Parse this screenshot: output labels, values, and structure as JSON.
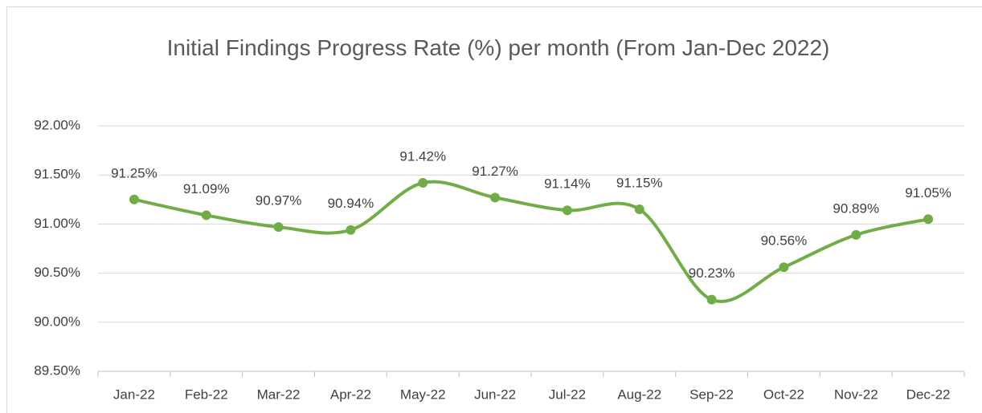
{
  "chart_data": {
    "type": "line",
    "title": "Initial Findings Progress Rate (%) per month (From Jan-Dec 2022)",
    "categories": [
      "Jan-22",
      "Feb-22",
      "Mar-22",
      "Apr-22",
      "May-22",
      "Jun-22",
      "Jul-22",
      "Aug-22",
      "Sep-22",
      "Oct-22",
      "Nov-22",
      "Dec-22"
    ],
    "values": [
      91.25,
      91.09,
      90.97,
      90.94,
      91.42,
      91.27,
      91.14,
      91.15,
      90.23,
      90.56,
      90.89,
      91.05
    ],
    "value_labels": [
      "91.25%",
      "91.09%",
      "90.97%",
      "90.94%",
      "91.42%",
      "91.27%",
      "91.14%",
      "91.15%",
      "90.23%",
      "90.56%",
      "90.89%",
      "91.05%"
    ],
    "color": "#70ad47",
    "ylim": [
      89.5,
      92
    ],
    "yticks": [
      {
        "value": 89.5,
        "label": "89.50%"
      },
      {
        "value": 90,
        "label": "90.00%"
      },
      {
        "value": 90.5,
        "label": "90.50%"
      },
      {
        "value": 91,
        "label": "91.00%"
      },
      {
        "value": 91.5,
        "label": "91.50%"
      },
      {
        "value": 92,
        "label": "92.00%"
      }
    ],
    "grid": true
  }
}
